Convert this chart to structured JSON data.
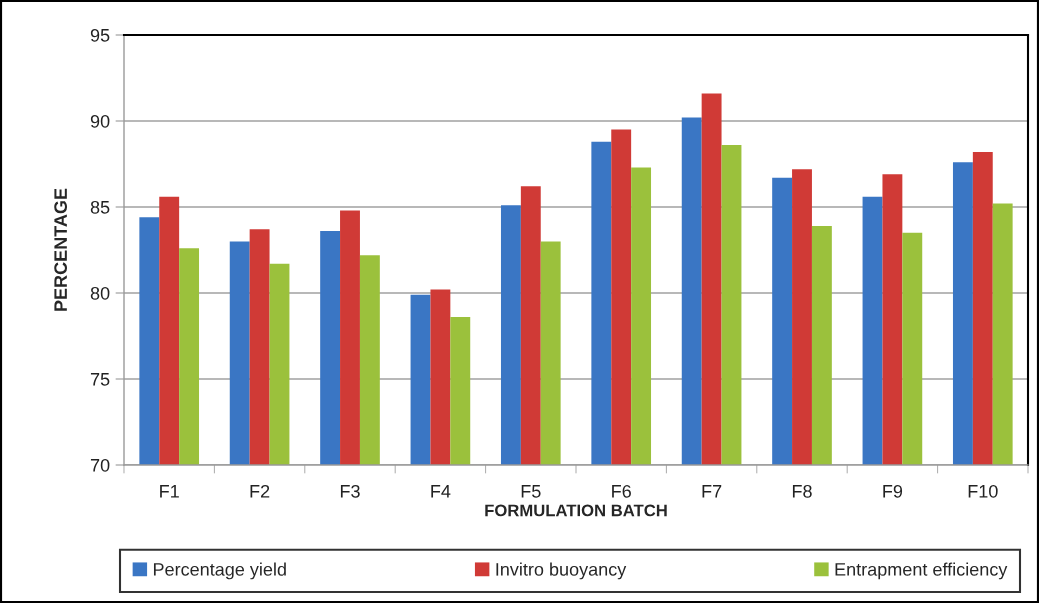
{
  "chart_data": {
    "type": "bar",
    "xlabel": "FORMULATION BATCH",
    "ylabel": "PERCENTAGE",
    "categories": [
      "F1",
      "F2",
      "F3",
      "F4",
      "F5",
      "F6",
      "F7",
      "F8",
      "F9",
      "F10"
    ],
    "series": [
      {
        "name": "Percentage yield",
        "color": "#3a76c4",
        "values": [
          84.4,
          83.0,
          83.6,
          79.9,
          85.1,
          88.8,
          90.2,
          86.7,
          85.6,
          87.6
        ]
      },
      {
        "name": "Invitro buoyancy",
        "color": "#d03a36",
        "values": [
          85.6,
          83.7,
          84.8,
          80.2,
          86.2,
          89.5,
          91.6,
          87.2,
          86.9,
          88.2
        ]
      },
      {
        "name": "Entrapment efficiency",
        "color": "#9bc13c",
        "values": [
          82.6,
          81.7,
          82.2,
          78.6,
          83.0,
          87.3,
          88.6,
          83.9,
          83.5,
          85.2
        ]
      }
    ],
    "ylim": [
      70,
      95
    ],
    "yticks": [
      70,
      75,
      80,
      85,
      90,
      95
    ],
    "grid": "y",
    "legend": "bottom"
  }
}
